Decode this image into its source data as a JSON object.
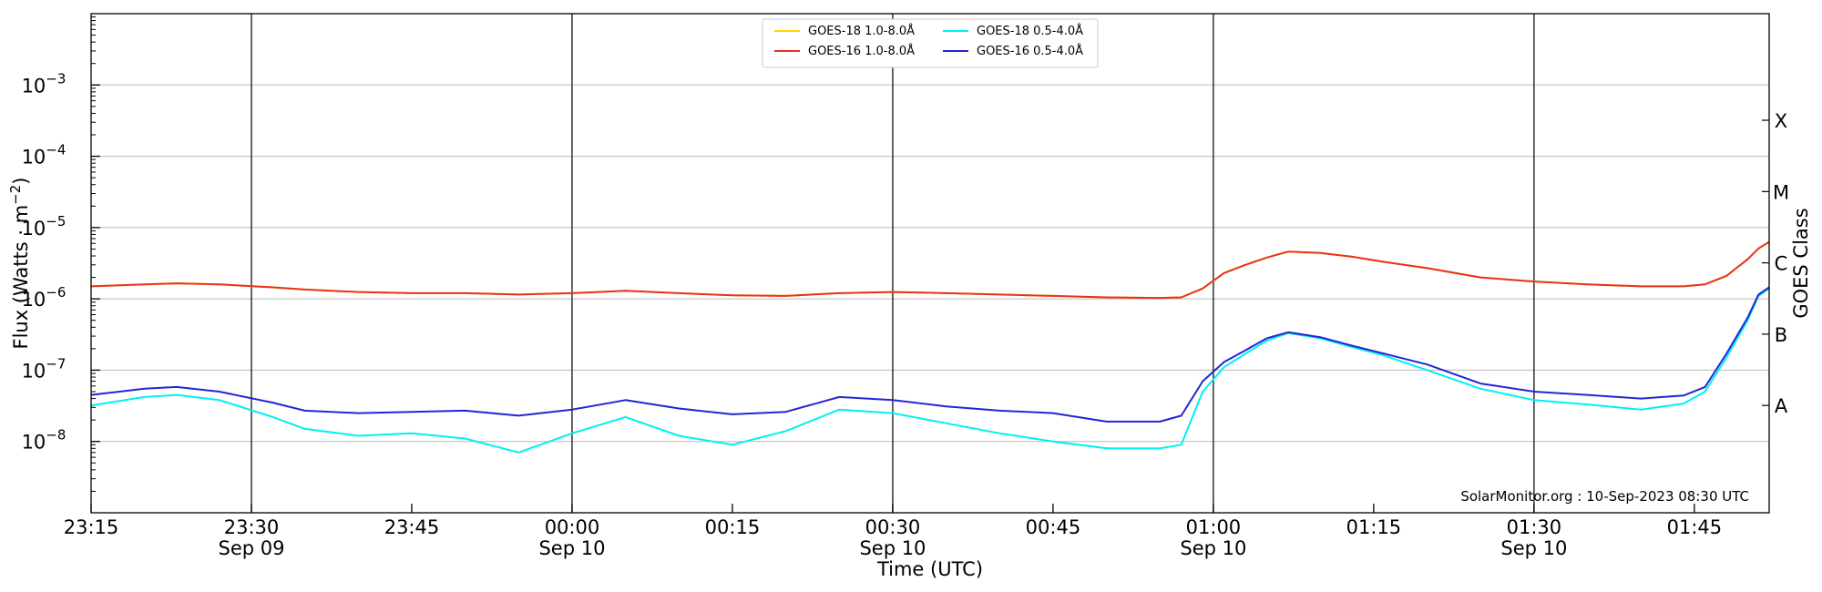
{
  "chart_data": {
    "type": "line",
    "ylabel": "Flux (Watts · m⁻²)",
    "xlabel": "Time (UTC)",
    "right_axis_label": "GOES Class",
    "credit": "SolarMonitor.org : 10-Sep-2023 08:30 UTC",
    "y_scale": "log",
    "ylim": [
      1e-09,
      0.01
    ],
    "xlim": [
      "2023-09-09 23:15",
      "2023-09-10 01:52"
    ],
    "grid": "horizontal at decades",
    "legend_position": "top-center",
    "y_ticks": [
      {
        "value": 1e-08,
        "base": "10",
        "exp": "−8"
      },
      {
        "value": 1e-07,
        "base": "10",
        "exp": "−7"
      },
      {
        "value": 1e-06,
        "base": "10",
        "exp": "−6"
      },
      {
        "value": 1e-05,
        "base": "10",
        "exp": "−5"
      },
      {
        "value": 0.0001,
        "base": "10",
        "exp": "−4"
      },
      {
        "value": 0.001,
        "base": "10",
        "exp": "−3"
      }
    ],
    "x_ticks": [
      {
        "time": "2023-09-09 23:15",
        "label": "23:15",
        "sublabel": ""
      },
      {
        "time": "2023-09-09 23:30",
        "label": "23:30",
        "sublabel": "Sep 09"
      },
      {
        "time": "2023-09-09 23:45",
        "label": "23:45",
        "sublabel": ""
      },
      {
        "time": "2023-09-10 00:00",
        "label": "00:00",
        "sublabel": "Sep 10"
      },
      {
        "time": "2023-09-10 00:15",
        "label": "00:15",
        "sublabel": ""
      },
      {
        "time": "2023-09-10 00:30",
        "label": "00:30",
        "sublabel": "Sep 10"
      },
      {
        "time": "2023-09-10 00:45",
        "label": "00:45",
        "sublabel": ""
      },
      {
        "time": "2023-09-10 01:00",
        "label": "01:00",
        "sublabel": "Sep 10"
      },
      {
        "time": "2023-09-10 01:15",
        "label": "01:15",
        "sublabel": ""
      },
      {
        "time": "2023-09-10 01:30",
        "label": "01:30",
        "sublabel": "Sep 10"
      },
      {
        "time": "2023-09-10 01:45",
        "label": "01:45",
        "sublabel": ""
      }
    ],
    "vertical_lines": [
      "2023-09-09 23:30",
      "2023-09-10 00:00",
      "2023-09-10 00:30",
      "2023-09-10 01:00",
      "2023-09-10 01:30"
    ],
    "goes_classes": [
      {
        "label": "A",
        "value": 3.2e-08
      },
      {
        "label": "B",
        "value": 3.2e-07
      },
      {
        "label": "C",
        "value": 3.2e-06
      },
      {
        "label": "M",
        "value": 3.2e-05
      },
      {
        "label": "X",
        "value": 0.00032
      }
    ],
    "x": [
      "2023-09-09 23:15",
      "2023-09-09 23:20",
      "2023-09-09 23:23",
      "2023-09-09 23:27",
      "2023-09-09 23:32",
      "2023-09-09 23:35",
      "2023-09-09 23:40",
      "2023-09-09 23:45",
      "2023-09-09 23:50",
      "2023-09-09 23:55",
      "2023-09-10 00:00",
      "2023-09-10 00:05",
      "2023-09-10 00:10",
      "2023-09-10 00:15",
      "2023-09-10 00:20",
      "2023-09-10 00:25",
      "2023-09-10 00:30",
      "2023-09-10 00:35",
      "2023-09-10 00:40",
      "2023-09-10 00:45",
      "2023-09-10 00:50",
      "2023-09-10 00:55",
      "2023-09-10 00:57",
      "2023-09-10 00:59",
      "2023-09-10 01:01",
      "2023-09-10 01:03",
      "2023-09-10 01:05",
      "2023-09-10 01:07",
      "2023-09-10 01:10",
      "2023-09-10 01:13",
      "2023-09-10 01:16",
      "2023-09-10 01:20",
      "2023-09-10 01:25",
      "2023-09-10 01:30",
      "2023-09-10 01:35",
      "2023-09-10 01:40",
      "2023-09-10 01:44",
      "2023-09-10 01:46",
      "2023-09-10 01:48",
      "2023-09-10 01:50",
      "2023-09-10 01:51",
      "2023-09-10 01:52"
    ],
    "series": [
      {
        "name": "GOES-18 1.0-8.0Å",
        "color": "#ffd700",
        "values": [
          1.5e-06,
          1.6e-06,
          1.65e-06,
          1.6e-06,
          1.45e-06,
          1.35e-06,
          1.25e-06,
          1.2e-06,
          1.2e-06,
          1.15e-06,
          1.2e-06,
          1.3e-06,
          1.2e-06,
          1.12e-06,
          1.1e-06,
          1.2e-06,
          1.25e-06,
          1.2e-06,
          1.15e-06,
          1.1e-06,
          1.05e-06,
          1.03e-06,
          1.05e-06,
          1.4e-06,
          2.3e-06,
          3e-06,
          3.8e-06,
          4.6e-06,
          4.4e-06,
          3.9e-06,
          3.3e-06,
          2.7e-06,
          2e-06,
          1.75e-06,
          1.6e-06,
          1.5e-06,
          1.5e-06,
          1.6e-06,
          2.1e-06,
          3.6e-06,
          5.1e-06,
          6.3e-06
        ]
      },
      {
        "name": "GOES-16 1.0-8.0Å",
        "color": "#e8321e",
        "values": [
          1.5e-06,
          1.6e-06,
          1.65e-06,
          1.6e-06,
          1.45e-06,
          1.35e-06,
          1.25e-06,
          1.2e-06,
          1.2e-06,
          1.15e-06,
          1.2e-06,
          1.3e-06,
          1.2e-06,
          1.12e-06,
          1.1e-06,
          1.2e-06,
          1.25e-06,
          1.2e-06,
          1.15e-06,
          1.1e-06,
          1.05e-06,
          1.03e-06,
          1.05e-06,
          1.4e-06,
          2.3e-06,
          3e-06,
          3.8e-06,
          4.6e-06,
          4.4e-06,
          3.9e-06,
          3.3e-06,
          2.7e-06,
          2e-06,
          1.75e-06,
          1.6e-06,
          1.5e-06,
          1.5e-06,
          1.6e-06,
          2.1e-06,
          3.6e-06,
          5.1e-06,
          6.3e-06
        ]
      },
      {
        "name": "GOES-18 0.5-4.0Å",
        "color": "#00f0f0",
        "values": [
          3.2e-08,
          4.2e-08,
          4.5e-08,
          3.8e-08,
          2.2e-08,
          1.5e-08,
          1.2e-08,
          1.3e-08,
          1.1e-08,
          7e-09,
          1.3e-08,
          2.2e-08,
          1.2e-08,
          9e-09,
          1.4e-08,
          2.8e-08,
          2.5e-08,
          1.8e-08,
          1.3e-08,
          1e-08,
          8e-09,
          8e-09,
          9e-09,
          5e-08,
          1.1e-07,
          1.7e-07,
          2.6e-07,
          3.3e-07,
          2.8e-07,
          2.1e-07,
          1.6e-07,
          1e-07,
          5.5e-08,
          3.8e-08,
          3.3e-08,
          2.8e-08,
          3.4e-08,
          5e-08,
          1.5e-07,
          5e-07,
          1.1e-06,
          1.4e-06
        ]
      },
      {
        "name": "GOES-16 0.5-4.0Å",
        "color": "#2424d8",
        "values": [
          4.5e-08,
          5.5e-08,
          5.8e-08,
          5e-08,
          3.5e-08,
          2.7e-08,
          2.5e-08,
          2.6e-08,
          2.7e-08,
          2.3e-08,
          2.8e-08,
          3.8e-08,
          2.9e-08,
          2.4e-08,
          2.6e-08,
          4.2e-08,
          3.8e-08,
          3.1e-08,
          2.7e-08,
          2.5e-08,
          1.9e-08,
          1.9e-08,
          2.3e-08,
          7e-08,
          1.3e-07,
          1.9e-07,
          2.8e-07,
          3.4e-07,
          2.9e-07,
          2.2e-07,
          1.7e-07,
          1.2e-07,
          6.5e-08,
          5e-08,
          4.5e-08,
          4e-08,
          4.4e-08,
          5.8e-08,
          1.7e-07,
          5.5e-07,
          1.15e-06,
          1.45e-06
        ]
      }
    ]
  }
}
